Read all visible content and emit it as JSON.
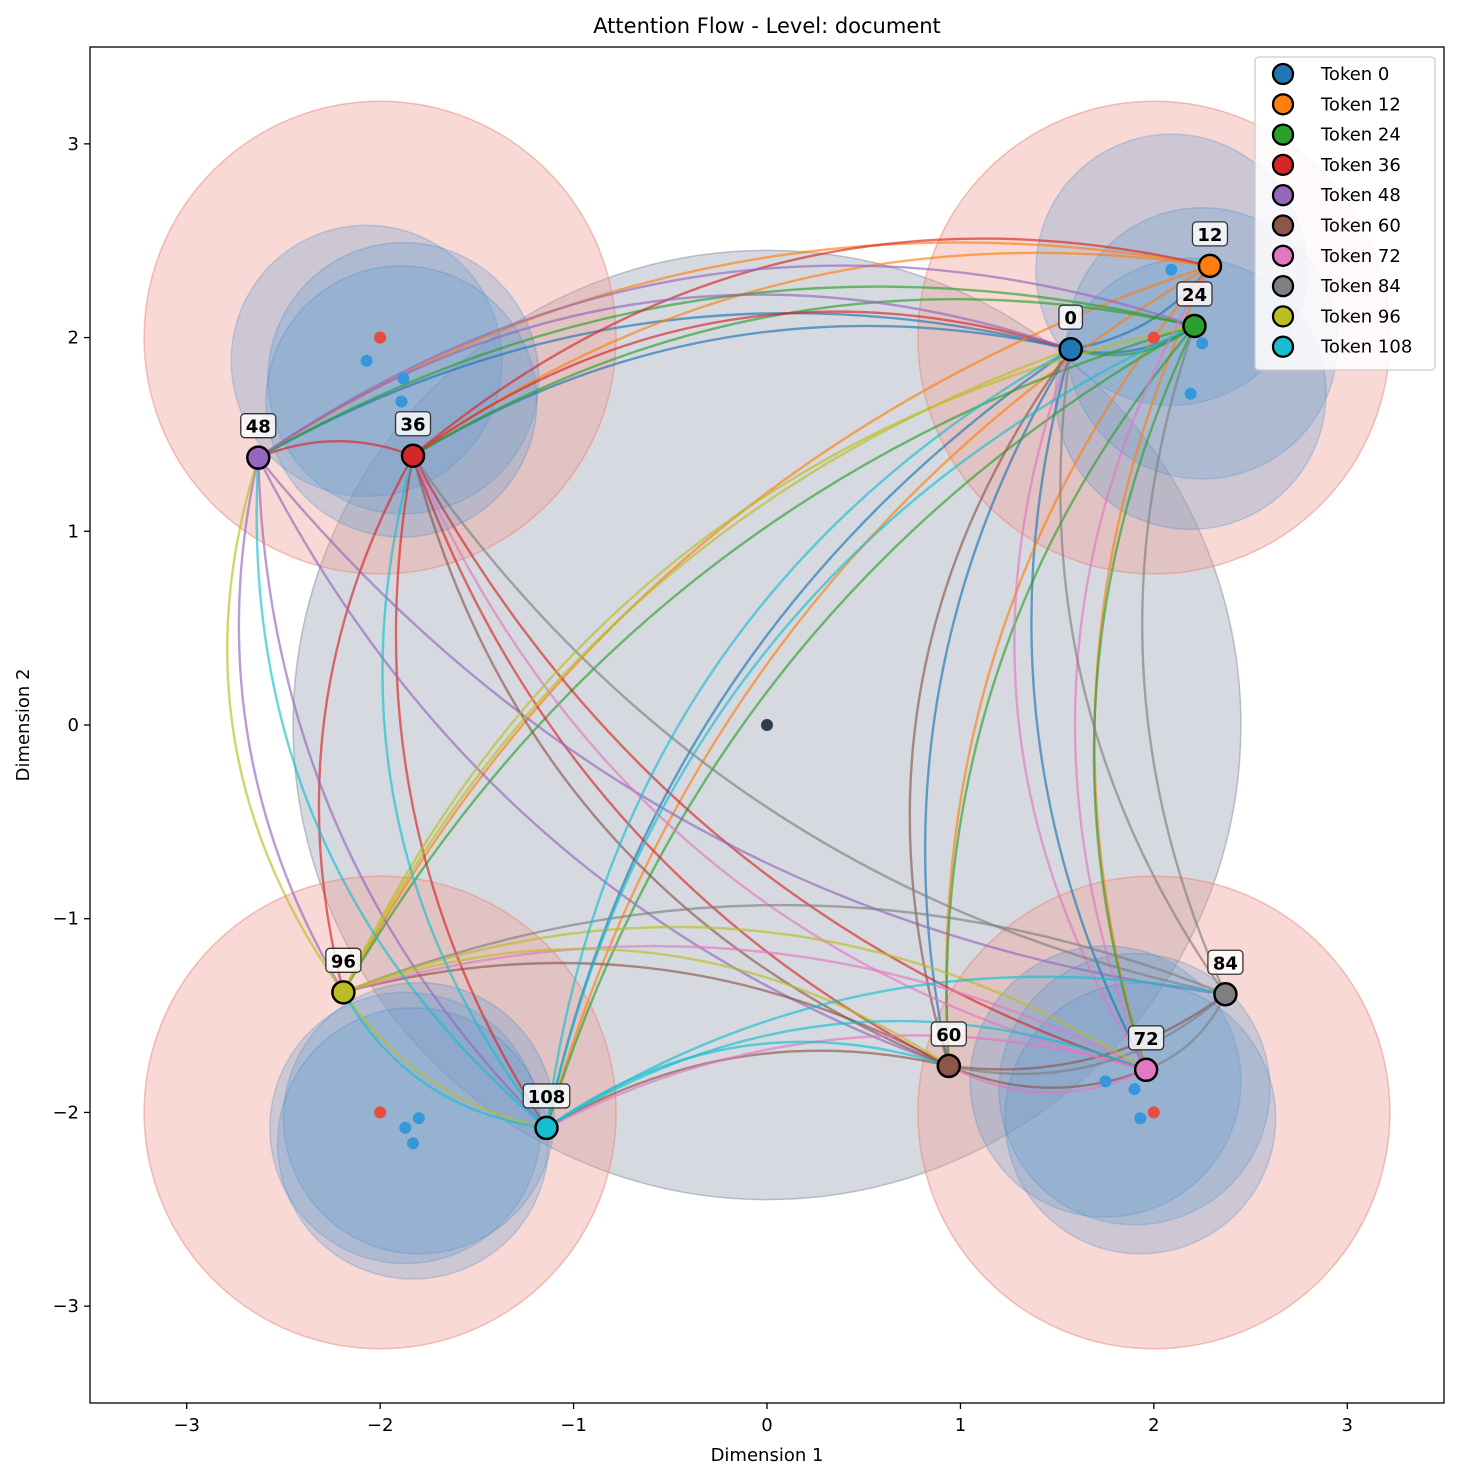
{
  "chart_data": {
    "type": "scatter",
    "title": "Attention Flow - Level: document",
    "xlabel": "Dimension 1",
    "ylabel": "Dimension 2",
    "xlim": [
      -3.5,
      3.5
    ],
    "ylim": [
      -3.5,
      3.5
    ],
    "xticks": [
      -3,
      -2,
      -1,
      0,
      1,
      2,
      3
    ],
    "yticks": [
      -3,
      -2,
      -1,
      0,
      1,
      2,
      3
    ],
    "xtick_labels": [
      "−3",
      "−2",
      "−1",
      "0",
      "1",
      "2",
      "3"
    ],
    "ytick_labels": [
      "−3",
      "−2",
      "−1",
      "0",
      "1",
      "2",
      "3"
    ],
    "grid": false,
    "legend_position": "top-right",
    "tokens": [
      {
        "id": 0,
        "label": "0",
        "legend": "Token 0",
        "x": 1.57,
        "y": 1.94,
        "color": "#1f77b4"
      },
      {
        "id": 12,
        "label": "12",
        "legend": "Token 12",
        "x": 2.29,
        "y": 2.37,
        "color": "#ff7f0e"
      },
      {
        "id": 24,
        "label": "24",
        "legend": "Token 24",
        "x": 2.21,
        "y": 2.06,
        "color": "#2ca02c"
      },
      {
        "id": 36,
        "label": "36",
        "legend": "Token 36",
        "x": -1.83,
        "y": 1.39,
        "color": "#d62728"
      },
      {
        "id": 48,
        "label": "48",
        "legend": "Token 48",
        "x": -2.63,
        "y": 1.38,
        "color": "#9467bd"
      },
      {
        "id": 60,
        "label": "60",
        "legend": "Token 60",
        "x": 0.94,
        "y": -1.76,
        "color": "#8c564b"
      },
      {
        "id": 72,
        "label": "72",
        "legend": "Token 72",
        "x": 1.96,
        "y": -1.78,
        "color": "#e377c2"
      },
      {
        "id": 84,
        "label": "84",
        "legend": "Token 84",
        "x": 2.37,
        "y": -1.39,
        "color": "#7f7f7f"
      },
      {
        "id": 96,
        "label": "96",
        "legend": "Token 96",
        "x": -2.19,
        "y": -1.38,
        "color": "#bcbd22"
      },
      {
        "id": 108,
        "label": "108",
        "legend": "Token 108",
        "x": -1.14,
        "y": -2.08,
        "color": "#17becf"
      }
    ],
    "cluster_regions": [
      {
        "cx": 0.0,
        "cy": 0.0,
        "r": 2.45,
        "kind": "root"
      },
      {
        "cx": -2.0,
        "cy": 2.0,
        "r": 1.22,
        "kind": "cluster"
      },
      {
        "cx": 2.0,
        "cy": 2.0,
        "r": 1.22,
        "kind": "cluster"
      },
      {
        "cx": -2.0,
        "cy": -2.0,
        "r": 1.22,
        "kind": "cluster"
      },
      {
        "cx": 2.0,
        "cy": -2.0,
        "r": 1.22,
        "kind": "cluster"
      }
    ],
    "sub_regions": [
      {
        "cx": -2.07,
        "cy": 1.88,
        "r": 0.7
      },
      {
        "cx": -1.88,
        "cy": 1.79,
        "r": 0.7
      },
      {
        "cx": -1.89,
        "cy": 1.67,
        "r": 0.7
      },
      {
        "cx": 2.09,
        "cy": 2.35,
        "r": 0.7
      },
      {
        "cx": 2.25,
        "cy": 1.97,
        "r": 0.7
      },
      {
        "cx": 2.19,
        "cy": 1.71,
        "r": 0.7
      },
      {
        "cx": -1.87,
        "cy": -2.08,
        "r": 0.7
      },
      {
        "cx": -1.8,
        "cy": -2.03,
        "r": 0.7
      },
      {
        "cx": -1.83,
        "cy": -2.16,
        "r": 0.7
      },
      {
        "cx": 1.75,
        "cy": -1.84,
        "r": 0.7
      },
      {
        "cx": 1.9,
        "cy": -1.88,
        "r": 0.7
      },
      {
        "cx": 1.93,
        "cy": -2.03,
        "r": 0.7
      }
    ],
    "center_points": [
      {
        "x": -2.0,
        "y": 2.0
      },
      {
        "x": 2.0,
        "y": 2.0
      },
      {
        "x": -2.0,
        "y": -2.0
      },
      {
        "x": 2.0,
        "y": -2.0
      }
    ],
    "root_point": {
      "x": 0.0,
      "y": 0.0
    },
    "edges": [
      [
        0,
        12
      ],
      [
        0,
        24
      ],
      [
        0,
        36
      ],
      [
        0,
        48
      ],
      [
        0,
        60
      ],
      [
        0,
        72
      ],
      [
        0,
        108
      ],
      [
        12,
        36
      ],
      [
        12,
        48
      ],
      [
        12,
        60
      ],
      [
        12,
        72
      ],
      [
        12,
        96
      ],
      [
        12,
        108
      ],
      [
        24,
        0
      ],
      [
        24,
        36
      ],
      [
        24,
        48
      ],
      [
        24,
        60
      ],
      [
        24,
        72
      ],
      [
        24,
        96
      ],
      [
        24,
        108
      ],
      [
        36,
        0
      ],
      [
        36,
        12
      ],
      [
        36,
        48
      ],
      [
        36,
        60
      ],
      [
        36,
        72
      ],
      [
        36,
        96
      ],
      [
        36,
        108
      ],
      [
        48,
        0
      ],
      [
        48,
        24
      ],
      [
        48,
        60
      ],
      [
        48,
        84
      ],
      [
        48,
        96
      ],
      [
        48,
        108
      ],
      [
        60,
        0
      ],
      [
        60,
        36
      ],
      [
        60,
        72
      ],
      [
        60,
        84
      ],
      [
        60,
        96
      ],
      [
        60,
        108
      ],
      [
        72,
        0
      ],
      [
        72,
        12
      ],
      [
        72,
        36
      ],
      [
        72,
        60
      ],
      [
        72,
        96
      ],
      [
        72,
        108
      ],
      [
        84,
        0
      ],
      [
        84,
        24
      ],
      [
        84,
        36
      ],
      [
        84,
        60
      ],
      [
        84,
        72
      ],
      [
        84,
        96
      ],
      [
        96,
        0
      ],
      [
        96,
        24
      ],
      [
        96,
        48
      ],
      [
        96,
        60
      ],
      [
        96,
        72
      ],
      [
        96,
        108
      ],
      [
        108,
        0
      ],
      [
        108,
        24
      ],
      [
        108,
        36
      ],
      [
        108,
        48
      ],
      [
        108,
        60
      ],
      [
        108,
        72
      ],
      [
        108,
        84
      ],
      [
        108,
        96
      ]
    ]
  }
}
